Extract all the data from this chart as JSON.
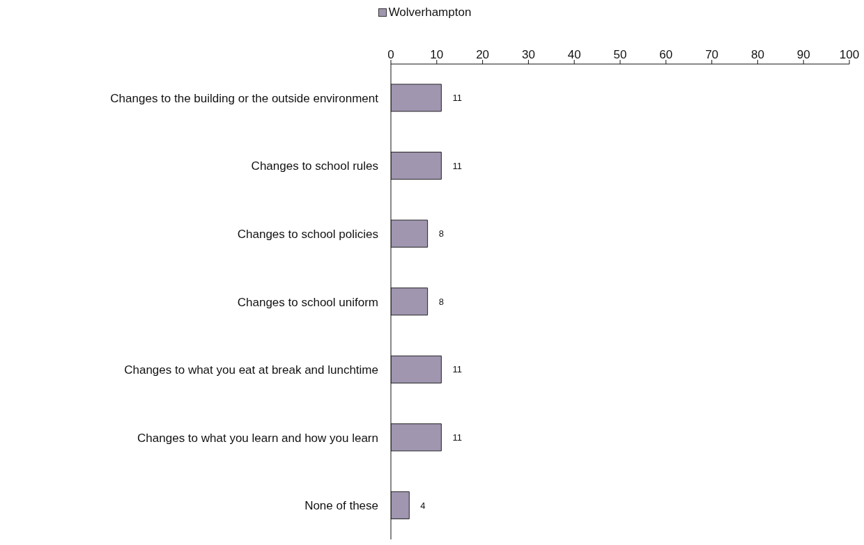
{
  "chart_data": {
    "type": "bar",
    "orientation": "horizontal",
    "categories": [
      "Changes to the building or the outside environment",
      "Changes to school rules",
      "Changes to school policies",
      "Changes to school uniform",
      "Changes to what you eat at break and lunchtime",
      "Changes to what you learn and how you learn",
      "None of these"
    ],
    "series": [
      {
        "name": "Wolverhampton",
        "color": "#a096b0",
        "values": [
          11,
          11,
          8,
          8,
          11,
          11,
          4
        ]
      }
    ],
    "xlim": [
      0,
      100
    ],
    "xticks": [
      0,
      10,
      20,
      30,
      40,
      50,
      60,
      70,
      80,
      90,
      100
    ],
    "data_labels": true,
    "legend": "top",
    "grid": false
  }
}
